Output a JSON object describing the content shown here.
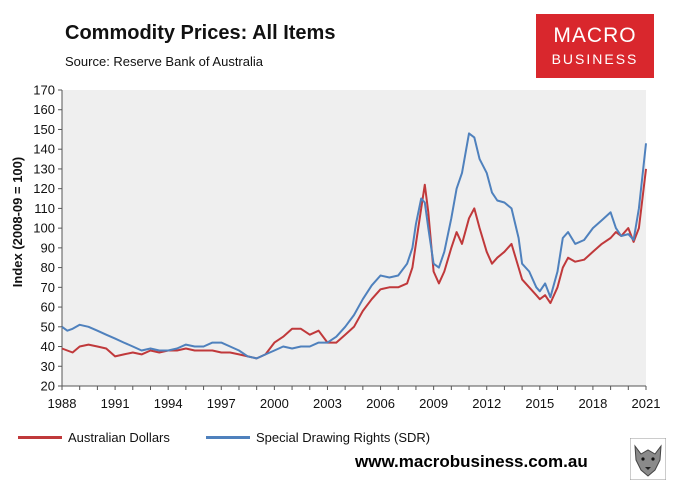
{
  "header": {
    "title": "Commodity Prices: All Items",
    "source": "Source: Reserve Bank of Australia"
  },
  "brand": {
    "line1": "MACRO",
    "line2": "BUSINESS",
    "url": "www.macrobusiness.com.au"
  },
  "colors": {
    "aud": "#c0393b",
    "sdr": "#4f81bd",
    "plot_bg": "#efefef",
    "brand": "#d9272d"
  },
  "chart_data": {
    "type": "line",
    "title": "Commodity Prices: All Items",
    "ylabel": "Index (2008-09 = 100)",
    "xlabel": "",
    "xlim": [
      1988,
      2021
    ],
    "ylim": [
      20,
      170
    ],
    "yticks": [
      20,
      30,
      40,
      50,
      60,
      70,
      80,
      90,
      100,
      110,
      120,
      130,
      140,
      150,
      160,
      170
    ],
    "xticks": [
      1988,
      1991,
      1994,
      1997,
      2000,
      2003,
      2006,
      2009,
      2012,
      2015,
      2018,
      2021
    ],
    "grid": false,
    "legend": "bottom",
    "series": [
      {
        "name": "Australian Dollars",
        "color": "#c0393b",
        "x": [
          1988.0,
          1988.3,
          1988.6,
          1989.0,
          1989.5,
          1990.0,
          1990.5,
          1991.0,
          1991.5,
          1992.0,
          1992.5,
          1993.0,
          1993.5,
          1994.0,
          1994.5,
          1995.0,
          1995.5,
          1996.0,
          1996.5,
          1997.0,
          1997.5,
          1998.0,
          1998.5,
          1999.0,
          1999.5,
          2000.0,
          2000.5,
          2001.0,
          2001.5,
          2002.0,
          2002.5,
          2003.0,
          2003.5,
          2004.0,
          2004.5,
          2005.0,
          2005.5,
          2006.0,
          2006.5,
          2007.0,
          2007.5,
          2007.8,
          2008.0,
          2008.3,
          2008.5,
          2008.7,
          2009.0,
          2009.3,
          2009.6,
          2010.0,
          2010.3,
          2010.6,
          2011.0,
          2011.3,
          2011.6,
          2012.0,
          2012.3,
          2012.6,
          2013.0,
          2013.4,
          2013.8,
          2014.0,
          2014.4,
          2014.8,
          2015.0,
          2015.3,
          2015.6,
          2016.0,
          2016.3,
          2016.6,
          2017.0,
          2017.5,
          2018.0,
          2018.5,
          2019.0,
          2019.3,
          2019.6,
          2020.0,
          2020.3,
          2020.6,
          2021.0
        ],
        "values": [
          39,
          38,
          37,
          40,
          41,
          40,
          39,
          35,
          36,
          37,
          36,
          38,
          37,
          38,
          38,
          39,
          38,
          38,
          38,
          37,
          37,
          36,
          35,
          34,
          36,
          42,
          45,
          49,
          49,
          46,
          48,
          42,
          42,
          46,
          50,
          58,
          64,
          69,
          70,
          70,
          72,
          80,
          92,
          110,
          122,
          108,
          78,
          72,
          78,
          90,
          98,
          92,
          105,
          110,
          100,
          88,
          82,
          85,
          88,
          92,
          80,
          74,
          70,
          66,
          64,
          66,
          62,
          70,
          80,
          85,
          83,
          84,
          88,
          92,
          95,
          98,
          96,
          100,
          93,
          100,
          130
        ]
      },
      {
        "name": "Special Drawing Rights (SDR)",
        "color": "#4f81bd",
        "x": [
          1988.0,
          1988.3,
          1988.6,
          1989.0,
          1989.5,
          1990.0,
          1990.5,
          1991.0,
          1991.5,
          1992.0,
          1992.5,
          1993.0,
          1993.5,
          1994.0,
          1994.5,
          1995.0,
          1995.5,
          1996.0,
          1996.5,
          1997.0,
          1997.5,
          1998.0,
          1998.5,
          1999.0,
          1999.5,
          2000.0,
          2000.5,
          2001.0,
          2001.5,
          2002.0,
          2002.5,
          2003.0,
          2003.5,
          2004.0,
          2004.5,
          2005.0,
          2005.5,
          2006.0,
          2006.5,
          2007.0,
          2007.5,
          2007.8,
          2008.0,
          2008.3,
          2008.5,
          2008.7,
          2009.0,
          2009.3,
          2009.6,
          2010.0,
          2010.3,
          2010.6,
          2011.0,
          2011.3,
          2011.6,
          2012.0,
          2012.3,
          2012.6,
          2013.0,
          2013.4,
          2013.8,
          2014.0,
          2014.4,
          2014.8,
          2015.0,
          2015.3,
          2015.6,
          2016.0,
          2016.3,
          2016.6,
          2017.0,
          2017.5,
          2018.0,
          2018.5,
          2019.0,
          2019.3,
          2019.6,
          2020.0,
          2020.3,
          2020.6,
          2021.0
        ],
        "values": [
          50,
          48,
          49,
          51,
          50,
          48,
          46,
          44,
          42,
          40,
          38,
          39,
          38,
          38,
          39,
          41,
          40,
          40,
          42,
          42,
          40,
          38,
          35,
          34,
          36,
          38,
          40,
          39,
          40,
          40,
          42,
          42,
          45,
          50,
          56,
          64,
          71,
          76,
          75,
          76,
          82,
          90,
          102,
          115,
          113,
          100,
          82,
          80,
          88,
          105,
          120,
          128,
          148,
          146,
          135,
          128,
          118,
          114,
          113,
          110,
          95,
          82,
          78,
          70,
          68,
          72,
          65,
          78,
          95,
          98,
          92,
          94,
          100,
          104,
          108,
          100,
          96,
          97,
          94,
          110,
          143
        ]
      }
    ]
  }
}
